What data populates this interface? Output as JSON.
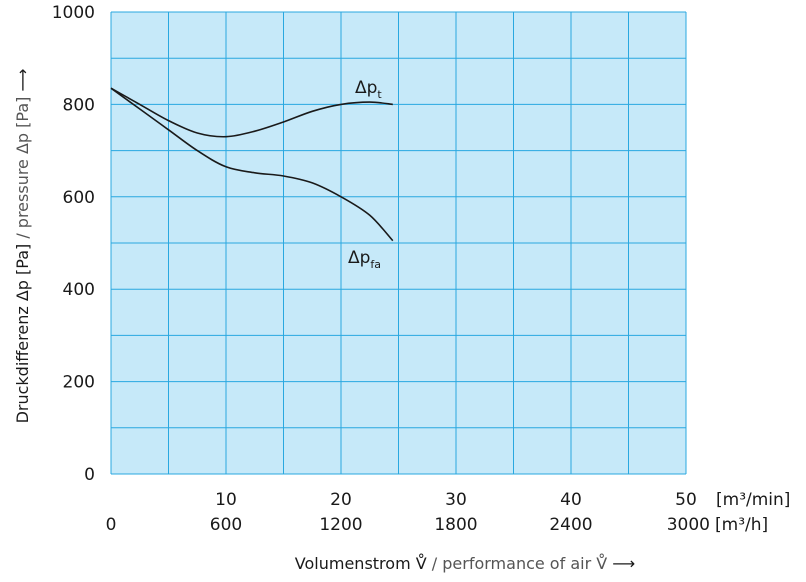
{
  "chart_data": {
    "type": "line",
    "x_unit_primary": "[m³/min]",
    "x_unit_secondary": "[m³/h]",
    "x_ticks_primary": [
      "10",
      "20",
      "30",
      "40",
      "50"
    ],
    "x_ticks_secondary": [
      "0",
      "600",
      "1200",
      "1800",
      "2400",
      "3000"
    ],
    "y_ticks": [
      "0",
      "200",
      "400",
      "600",
      "800",
      "1000"
    ],
    "xlim": [
      0,
      50
    ],
    "ylim": [
      0,
      1000
    ],
    "grid": true,
    "plot_background": "#c6e9f9",
    "grid_color": "#29a8e0",
    "line_color": "#1a1a1a",
    "xlabel": {
      "part1": "Volumenstrom V̊",
      "part2": " / performance of air V̊ ",
      "arrow": "⟶"
    },
    "ylabel": {
      "part1": "Druckdifferenz Δp [Pa]",
      "part2": " / pressure Δp [Pa] ",
      "arrow": "⟶"
    },
    "series": [
      {
        "label_main": "Δp",
        "label_sub": "t",
        "x": [
          0,
          2.5,
          5,
          7.5,
          10,
          12.5,
          15,
          17.5,
          20,
          22.5,
          24.5
        ],
        "y": [
          835,
          800,
          765,
          738,
          730,
          742,
          762,
          785,
          800,
          805,
          800
        ]
      },
      {
        "label_main": "Δp",
        "label_sub": "fa",
        "x": [
          0,
          2.5,
          5,
          7.5,
          10,
          12.5,
          15,
          17.5,
          20,
          22.5,
          24.5
        ],
        "y": [
          835,
          790,
          745,
          700,
          665,
          652,
          645,
          630,
          600,
          560,
          505
        ]
      }
    ]
  }
}
